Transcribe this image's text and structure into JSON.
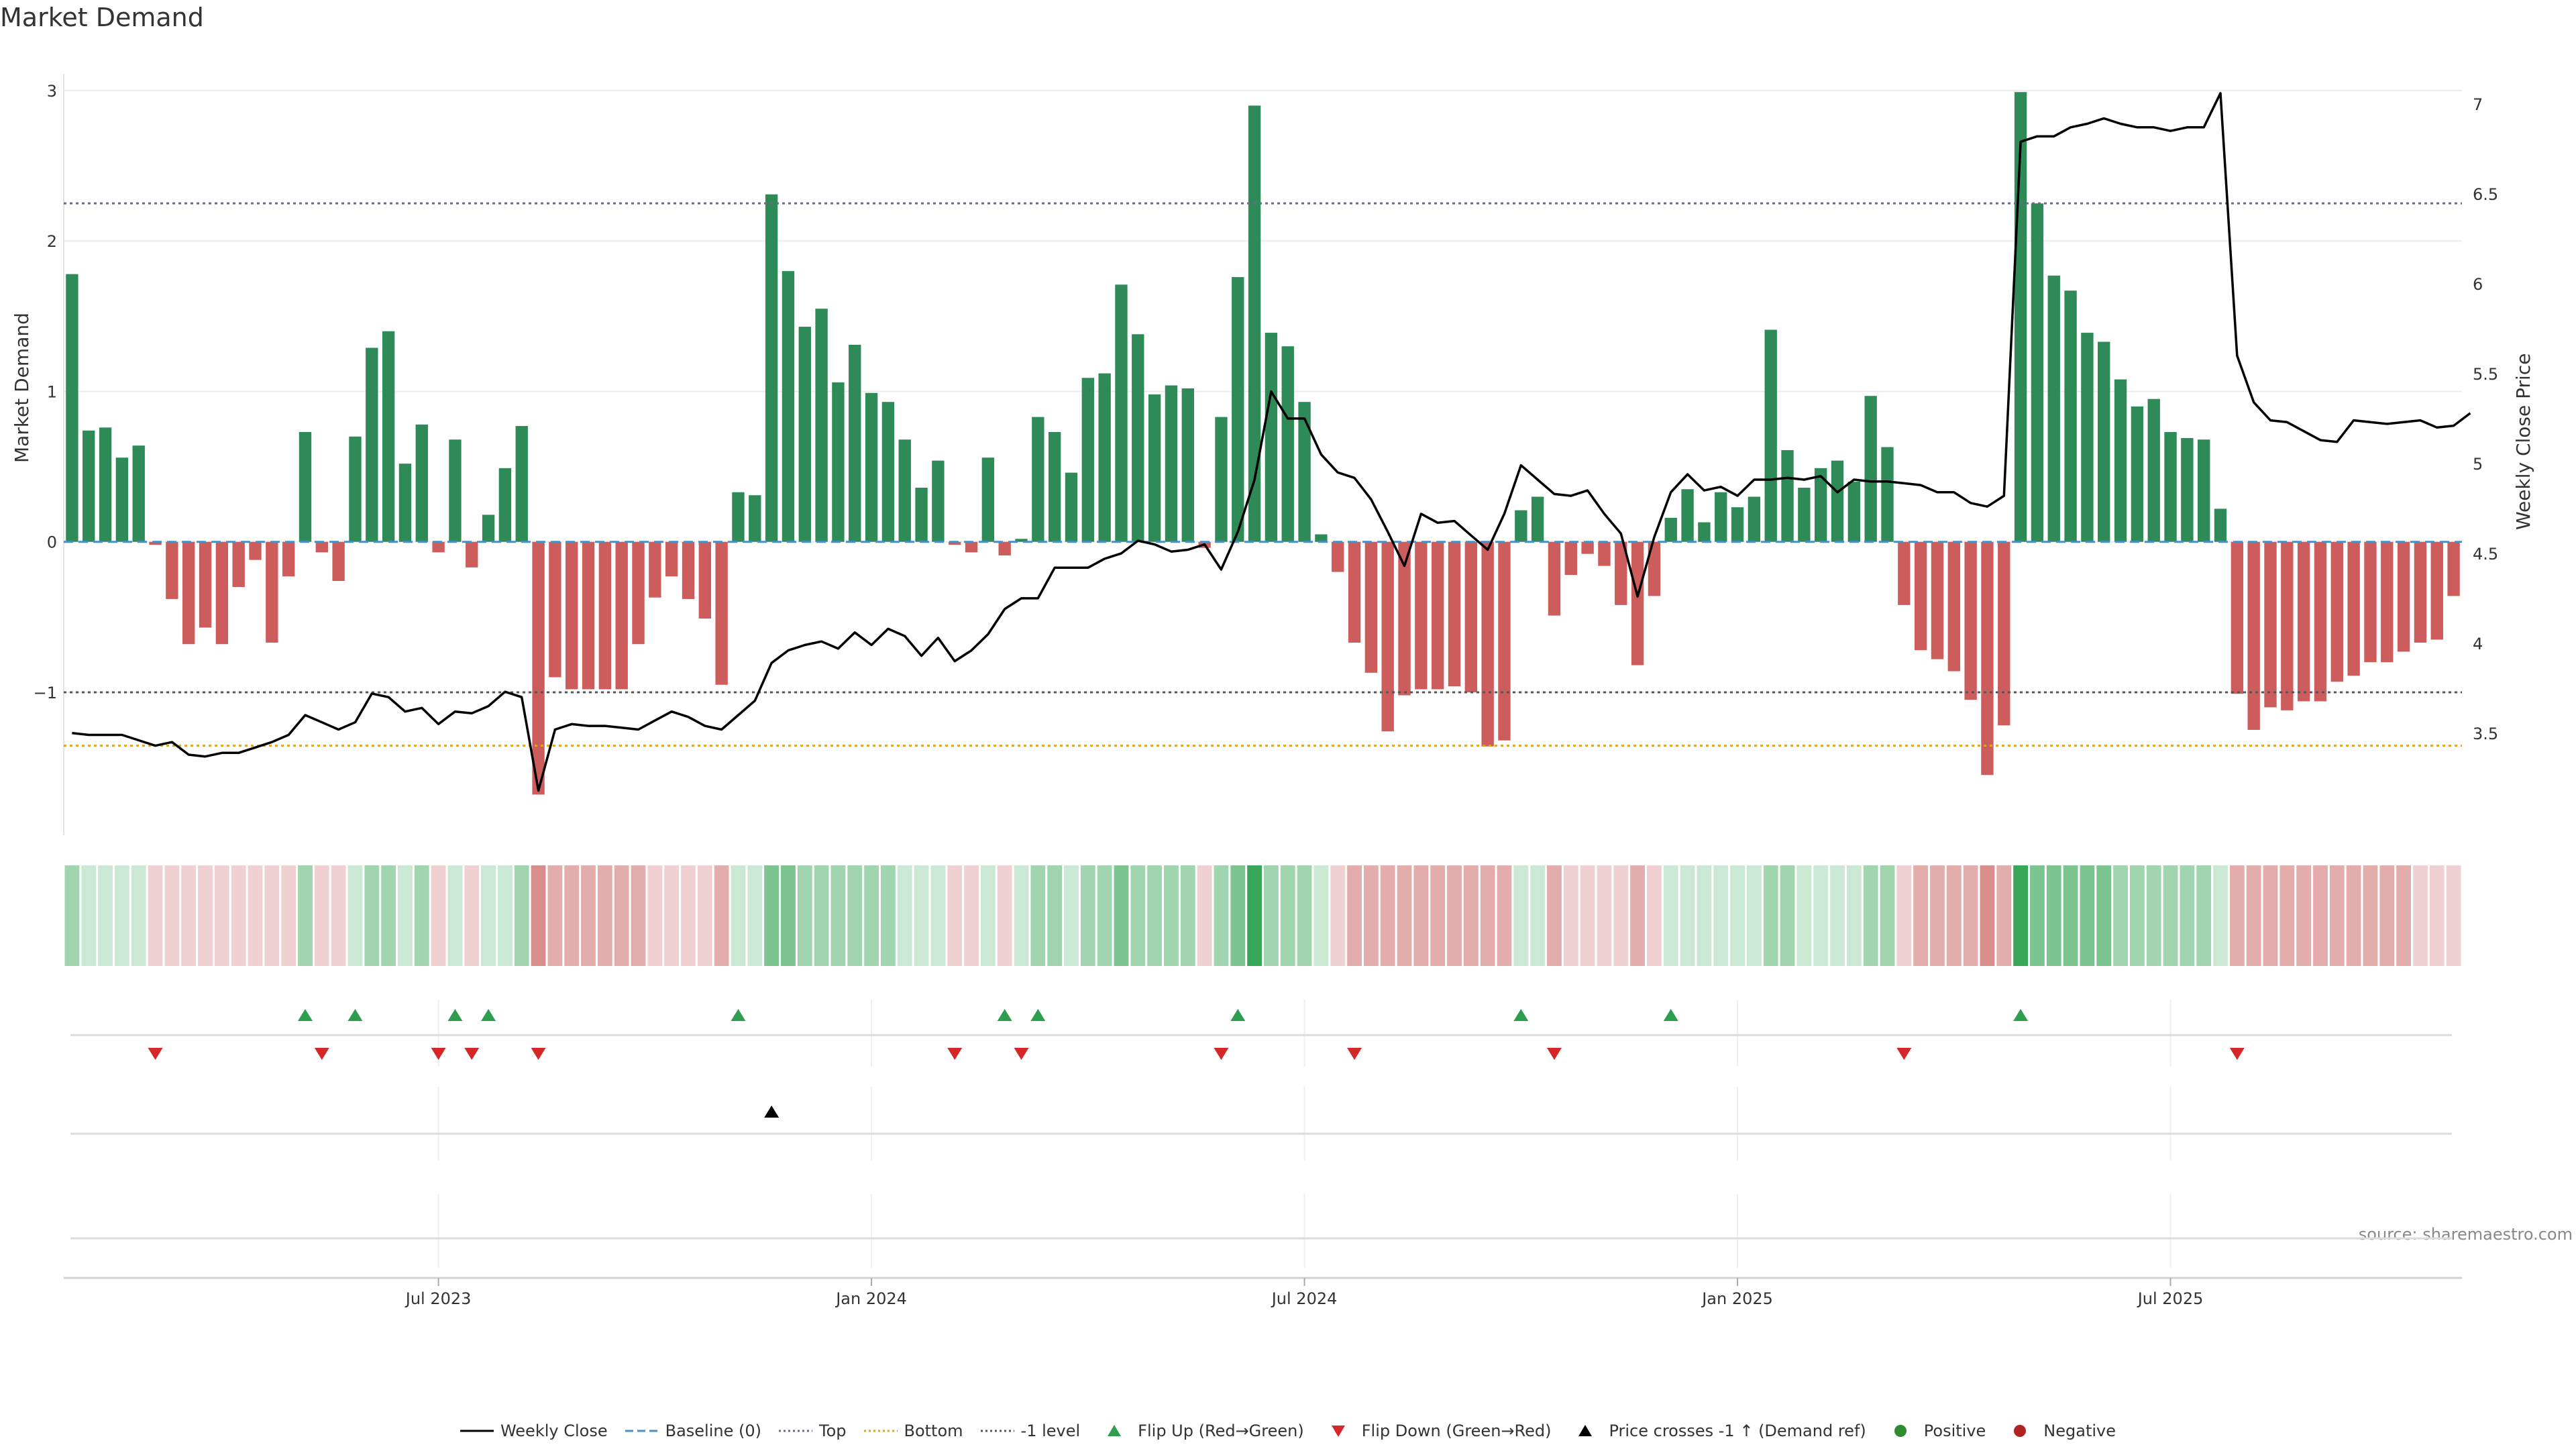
{
  "chart_data": {
    "type": "bar",
    "title": "Market Demand",
    "ylabel_left": "Market Demand",
    "ylabel_right": "Weekly Close Price",
    "source": "source: sharemaestro.com",
    "y_left_lim": [
      -1.95,
      3.0
    ],
    "y_left_ticks": [
      "3",
      "2",
      "1",
      "0",
      "−1"
    ],
    "y_left_tick_values": [
      3,
      2,
      1,
      0,
      -1
    ],
    "y_right_lim": [
      3.1,
      7.0
    ],
    "y_right_ticks": [
      "7",
      "6.5",
      "6",
      "5.5",
      "5",
      "4.5",
      "4",
      "3.5"
    ],
    "y_right_tick_values": [
      7,
      6.5,
      6,
      5.5,
      5,
      4.5,
      4,
      3.5
    ],
    "reference_lines": {
      "top": 2.25,
      "minus_one": -1.0,
      "bottom_price": 3.43
    },
    "x_tick_labels": [
      "Jul 2023",
      "Jan 2024",
      "Jul 2024",
      "Jan 2025",
      "Jul 2025"
    ],
    "x_tick_week_index": [
      22,
      48,
      74,
      100,
      126
    ],
    "demand": [
      1.78,
      0.74,
      0.76,
      0.56,
      0.64,
      -0.02,
      -0.38,
      -0.68,
      -0.57,
      -0.68,
      -0.3,
      -0.12,
      -0.67,
      -0.23,
      0.73,
      -0.07,
      -0.26,
      0.7,
      1.29,
      1.4,
      0.52,
      0.78,
      -0.07,
      0.68,
      -0.17,
      0.18,
      0.49,
      0.77,
      -1.68,
      -0.9,
      -0.98,
      -0.98,
      -0.98,
      -0.98,
      -0.68,
      -0.37,
      -0.23,
      -0.38,
      -0.51,
      -0.95,
      0.33,
      0.31,
      2.31,
      1.8,
      1.43,
      1.55,
      1.06,
      1.31,
      0.99,
      0.93,
      0.68,
      0.36,
      0.54,
      -0.02,
      -0.07,
      0.56,
      -0.09,
      0.02,
      0.83,
      0.73,
      0.46,
      1.09,
      1.12,
      1.71,
      1.38,
      0.98,
      1.04,
      1.02,
      -0.04,
      0.83,
      1.76,
      2.9,
      1.39,
      1.3,
      0.93,
      0.05,
      -0.2,
      -0.67,
      -0.87,
      -1.26,
      -1.02,
      -0.98,
      -0.98,
      -0.96,
      -1.0,
      -1.36,
      -1.32,
      0.21,
      0.3,
      -0.49,
      -0.22,
      -0.08,
      -0.16,
      -0.42,
      -0.82,
      -0.36,
      0.16,
      0.35,
      0.13,
      0.33,
      0.23,
      0.3,
      1.41,
      0.61,
      0.36,
      0.49,
      0.54,
      0.4,
      0.97,
      0.63,
      -0.42,
      -0.72,
      -0.78,
      -0.86,
      -1.05,
      -1.55,
      -1.22,
      2.99,
      2.25,
      1.77,
      1.67,
      1.39,
      1.33,
      1.08,
      0.9,
      0.95,
      0.73,
      0.69,
      0.68,
      0.22,
      -1.01,
      -1.25,
      -1.1,
      -1.12,
      -1.06,
      -1.06,
      -0.93,
      -0.89,
      -0.8,
      -0.8,
      -0.73,
      -0.67,
      -0.65,
      -0.36
    ],
    "price": [
      3.5,
      3.49,
      3.49,
      3.49,
      3.46,
      3.43,
      3.45,
      3.38,
      3.37,
      3.39,
      3.39,
      3.42,
      3.45,
      3.49,
      3.6,
      3.56,
      3.52,
      3.56,
      3.72,
      3.7,
      3.62,
      3.64,
      3.55,
      3.62,
      3.61,
      3.65,
      3.73,
      3.7,
      3.18,
      3.52,
      3.55,
      3.54,
      3.54,
      3.53,
      3.52,
      3.57,
      3.62,
      3.59,
      3.54,
      3.52,
      3.6,
      3.68,
      3.89,
      3.96,
      3.99,
      4.01,
      3.97,
      4.06,
      3.99,
      4.08,
      4.04,
      3.93,
      4.03,
      3.9,
      3.96,
      4.05,
      4.19,
      4.25,
      4.25,
      4.42,
      4.42,
      4.42,
      4.47,
      4.5,
      4.57,
      4.55,
      4.51,
      4.52,
      4.55,
      4.41,
      4.62,
      4.91,
      5.4,
      5.25,
      5.25,
      5.05,
      4.95,
      4.92,
      4.8,
      4.62,
      4.43,
      4.72,
      4.67,
      4.68,
      4.6,
      4.52,
      4.72,
      4.99,
      4.91,
      4.83,
      4.82,
      4.85,
      4.72,
      4.61,
      4.26,
      4.59,
      4.84,
      4.94,
      4.85,
      4.87,
      4.82,
      4.91,
      4.91,
      4.92,
      4.91,
      4.93,
      4.84,
      4.91,
      4.9,
      4.9,
      4.89,
      4.88,
      4.84,
      4.84,
      4.78,
      4.76,
      4.82,
      6.79,
      6.82,
      6.82,
      6.87,
      6.89,
      6.92,
      6.89,
      6.87,
      6.87,
      6.85,
      6.87,
      6.87,
      7.06,
      5.6,
      5.34,
      5.24,
      5.23,
      5.18,
      5.13,
      5.12,
      5.24,
      5.23,
      5.22,
      5.23,
      5.24,
      5.2,
      5.21,
      5.28
    ],
    "shade_levels": [
      2,
      1,
      1,
      1,
      1,
      -1,
      -1,
      -1,
      -1,
      -1,
      -1,
      -1,
      -1,
      -1,
      2,
      -1,
      -1,
      1,
      2,
      2,
      1,
      2,
      -1,
      1,
      -1,
      1,
      1,
      2,
      -3,
      -2,
      -2,
      -2,
      -2,
      -2,
      -2,
      -1,
      -1,
      -1,
      -1,
      -2,
      1,
      1,
      3,
      3,
      2,
      2,
      2,
      2,
      2,
      2,
      1,
      1,
      1,
      -1,
      -1,
      1,
      -1,
      1,
      2,
      2,
      1,
      2,
      2,
      3,
      2,
      2,
      2,
      2,
      -1,
      2,
      3,
      4,
      2,
      2,
      2,
      1,
      -1,
      -2,
      -2,
      -2,
      -2,
      -2,
      -2,
      -2,
      -2,
      -2,
      -2,
      1,
      1,
      -2,
      -1,
      -1,
      -1,
      -1,
      -2,
      -1,
      1,
      1,
      1,
      1,
      1,
      1,
      2,
      2,
      1,
      1,
      1,
      1,
      2,
      2,
      -1,
      -2,
      -2,
      -2,
      -2,
      -3,
      -2,
      4,
      3,
      3,
      3,
      3,
      3,
      2,
      2,
      2,
      2,
      2,
      2,
      1,
      -2,
      -2,
      -2,
      -2,
      -2,
      -2,
      -2,
      -2,
      -2,
      -2,
      -2,
      -1,
      -1,
      -1
    ],
    "flip_up_weeks": [
      14,
      17,
      23,
      25,
      40,
      56,
      58,
      70,
      87,
      96,
      117
    ],
    "flip_down_weeks": [
      5,
      15,
      22,
      24,
      28,
      53,
      57,
      69,
      77,
      89,
      110,
      130
    ],
    "price_cross_weeks": [
      42
    ],
    "legend": [
      "Weekly Close",
      "Baseline (0)",
      "Top",
      "Bottom",
      "-1 level",
      "Flip Up (Red→Green)",
      "Flip Down (Green→Red)",
      "Price crosses -1 ↑ (Demand ref)",
      "Positive",
      "Negative"
    ],
    "colors": {
      "positive": "#2e8b57",
      "negative": "#cd5c5c",
      "price": "#000000",
      "baseline": "#4a90c2",
      "top": "#6a6a8a",
      "bottom": "#daa520",
      "minus_one": "#555555",
      "flip_up": "#2e9e4e",
      "flip_down": "#d62728",
      "cross": "#000000",
      "pos_dot": "#2e8b2e",
      "neg_dot": "#b22222",
      "heat_pos": "#2ca24e",
      "heat_neg": "#c24848"
    }
  }
}
